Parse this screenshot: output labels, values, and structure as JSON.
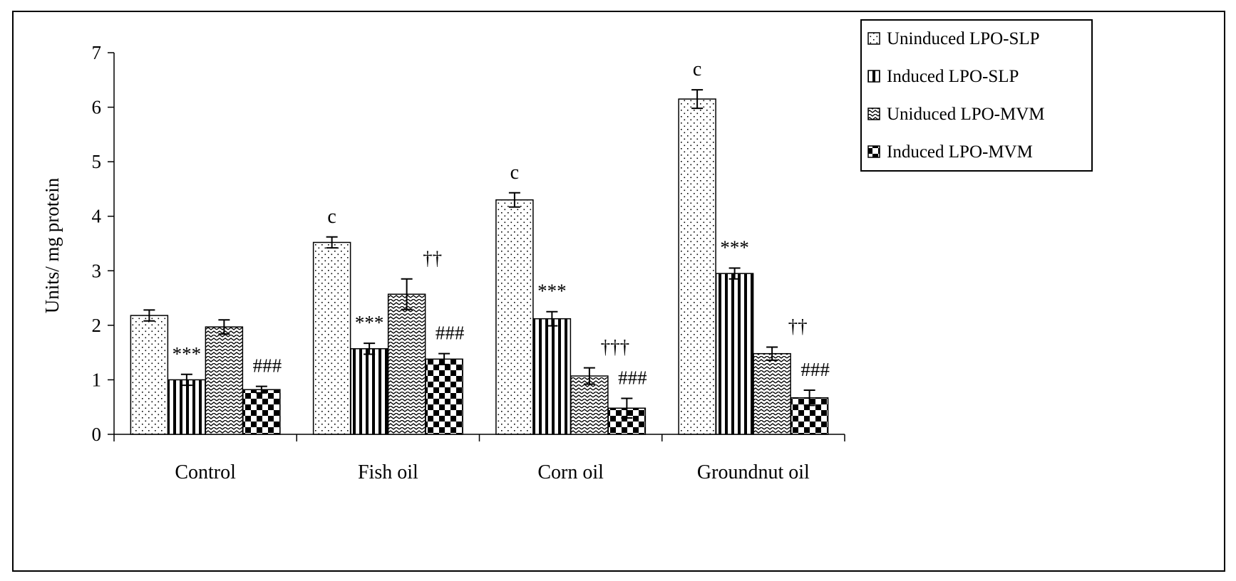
{
  "chart_data": {
    "type": "bar",
    "title": "",
    "xlabel": "",
    "ylabel": "Units/ mg protein",
    "ylim": [
      0,
      7
    ],
    "yticks": [
      0,
      1,
      2,
      3,
      4,
      5,
      6,
      7
    ],
    "grid": false,
    "legend_position": "top-right",
    "categories": [
      "Control",
      "Fish oil",
      "Corn oil",
      "Groundnut oil"
    ],
    "series": [
      {
        "name": "Uninduced LPO-SLP",
        "pattern": "dots",
        "values": [
          2.18,
          3.52,
          4.3,
          6.15
        ],
        "errors": [
          0.1,
          0.1,
          0.13,
          0.17
        ],
        "annotations": [
          "",
          "c",
          "c",
          "c"
        ]
      },
      {
        "name": "Induced LPO-SLP",
        "pattern": "vertical-stripes",
        "values": [
          1.0,
          1.57,
          2.12,
          2.95
        ],
        "errors": [
          0.1,
          0.1,
          0.13,
          0.1
        ],
        "annotations": [
          "***",
          "***",
          "***",
          "***"
        ]
      },
      {
        "name": "Uniduced LPO-MVM",
        "pattern": "zigzag",
        "values": [
          1.97,
          2.57,
          1.07,
          1.48
        ],
        "errors": [
          0.13,
          0.28,
          0.15,
          0.12
        ],
        "annotations": [
          "",
          "††",
          "†††",
          "††"
        ]
      },
      {
        "name": "Induced LPO-MVM",
        "pattern": "checker",
        "values": [
          0.82,
          1.38,
          0.48,
          0.67
        ],
        "errors": [
          0.06,
          0.1,
          0.18,
          0.14
        ],
        "annotations": [
          "###",
          "###",
          "###",
          "###"
        ]
      }
    ]
  }
}
